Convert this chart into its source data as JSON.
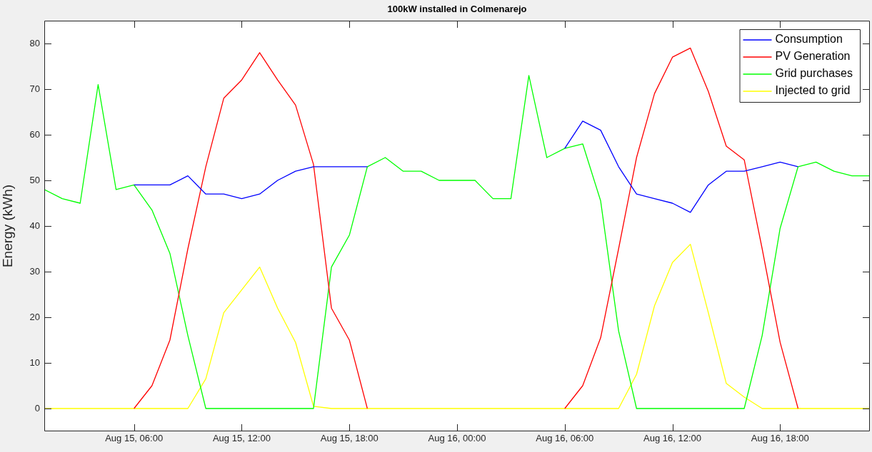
{
  "chart_data": {
    "type": "line",
    "title": "100kW installed in Colmenarejo",
    "ylabel": "Energy (kWh)",
    "x": [
      "--08-15T01:00",
      "--08-15T02:00",
      "--08-15T03:00",
      "--08-15T04:00",
      "--08-15T05:00",
      "--08-15T06:00",
      "--08-15T07:00",
      "--08-15T08:00",
      "--08-15T09:00",
      "--08-15T10:00",
      "--08-15T11:00",
      "--08-15T12:00",
      "--08-15T13:00",
      "--08-15T14:00",
      "--08-15T15:00",
      "--08-15T16:00",
      "--08-15T17:00",
      "--08-15T18:00",
      "--08-15T19:00",
      "--08-15T20:00",
      "--08-15T21:00",
      "--08-15T22:00",
      "--08-15T23:00",
      "--08-16T00:00",
      "--08-16T01:00",
      "--08-16T02:00",
      "--08-16T03:00",
      "--08-16T04:00",
      "--08-16T05:00",
      "--08-16T06:00",
      "--08-16T07:00",
      "--08-16T08:00",
      "--08-16T09:00",
      "--08-16T10:00",
      "--08-16T11:00",
      "--08-16T12:00",
      "--08-16T13:00",
      "--08-16T14:00",
      "--08-16T15:00",
      "--08-16T16:00",
      "--08-16T17:00",
      "--08-16T18:00",
      "--08-16T19:00",
      "--08-16T20:00",
      "--08-16T21:00",
      "--08-16T22:00",
      "--08-16T23:00"
    ],
    "series": [
      {
        "name": "Consumption",
        "color": "#0000ff",
        "values": [
          null,
          null,
          null,
          null,
          null,
          49,
          49,
          49,
          51,
          47,
          47,
          46,
          47,
          50,
          52,
          53,
          53,
          53,
          53,
          null,
          null,
          null,
          null,
          null,
          null,
          null,
          null,
          null,
          null,
          57,
          63,
          61,
          53,
          47,
          46,
          45,
          43,
          49,
          52,
          52,
          53,
          54,
          53,
          null,
          null,
          null,
          null
        ]
      },
      {
        "name": "PV Generation",
        "color": "#ff0000",
        "values": [
          null,
          null,
          null,
          null,
          null,
          0,
          5,
          15,
          35,
          53,
          68,
          72,
          78,
          72,
          66.5,
          53.5,
          22,
          15,
          0,
          null,
          null,
          null,
          null,
          null,
          null,
          null,
          null,
          null,
          null,
          0,
          5,
          15.5,
          35,
          55,
          69,
          77,
          79,
          69.5,
          57.5,
          54.5,
          35,
          14.5,
          0,
          null,
          null,
          null,
          null
        ]
      },
      {
        "name": "Grid purchases",
        "color": "#00ff00",
        "values": [
          48,
          46,
          45,
          71,
          48,
          49,
          43.5,
          34,
          16,
          0,
          0,
          0,
          0,
          0,
          0,
          0,
          31,
          38,
          53,
          55,
          52,
          52,
          50,
          50,
          50,
          46,
          46,
          73,
          55,
          57,
          58,
          45.5,
          17,
          0,
          0,
          0,
          0,
          0,
          0,
          0,
          16,
          39.5,
          53,
          54,
          52,
          51,
          51
        ]
      },
      {
        "name": "Injected to grid",
        "color": "#ffff00",
        "values": [
          0,
          0,
          0,
          0,
          0,
          0,
          0,
          0,
          0,
          6.5,
          21,
          26,
          31,
          22,
          14.5,
          0.5,
          0,
          0,
          0,
          0,
          0,
          0,
          0,
          0,
          0,
          0,
          0,
          0,
          0,
          0,
          0,
          0,
          0,
          7.5,
          22.5,
          32,
          36,
          21,
          5.5,
          2.5,
          0,
          0,
          0,
          0,
          0,
          0,
          0
        ]
      }
    ],
    "xlim": [
      "--08-15T01:00",
      "--08-16T23:00"
    ],
    "xticks": [
      {
        "value": "--08-15T06:00",
        "label": "Aug 15, 06:00"
      },
      {
        "value": "--08-15T12:00",
        "label": "Aug 15, 12:00"
      },
      {
        "value": "--08-15T18:00",
        "label": "Aug 15, 18:00"
      },
      {
        "value": "--08-16T00:00",
        "label": "Aug 16, 00:00"
      },
      {
        "value": "--08-16T06:00",
        "label": "Aug 16, 06:00"
      },
      {
        "value": "--08-16T12:00",
        "label": "Aug 16, 12:00"
      },
      {
        "value": "--08-16T18:00",
        "label": "Aug 16, 18:00"
      }
    ],
    "ylim": [
      -5,
      85
    ],
    "yticks": [
      0,
      10,
      20,
      30,
      40,
      50,
      60,
      70,
      80
    ],
    "grid": false,
    "legend": "top right",
    "marker": "none",
    "line_style": "solid"
  }
}
